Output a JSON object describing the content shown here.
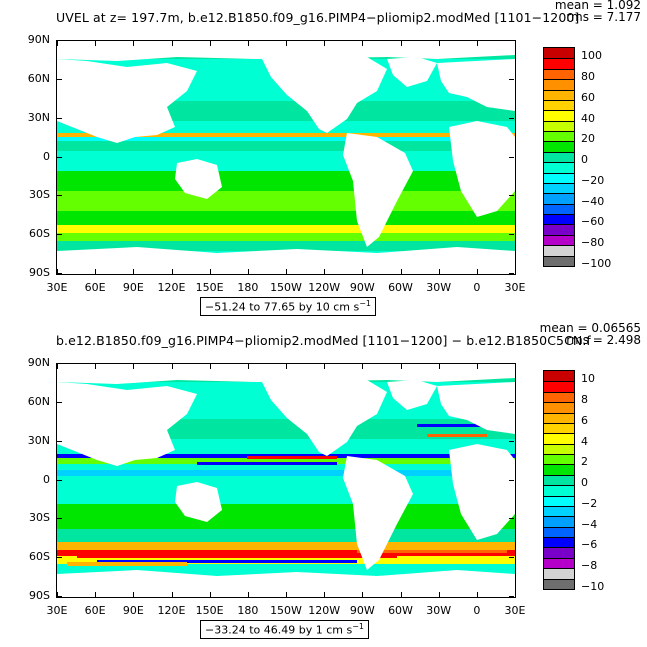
{
  "colors": [
    "#6e6e6e",
    "#d3d3d3",
    "#b400c8",
    "#7800c8",
    "#0000ff",
    "#0064ff",
    "#00a0ff",
    "#00d2ff",
    "#00ffff",
    "#00ffd2",
    "#00e6a0",
    "#00e600",
    "#64ff00",
    "#c8ff00",
    "#ffff00",
    "#ffd200",
    "#ffb400",
    "#ff9000",
    "#ff6400",
    "#ff0000",
    "#c80000"
  ],
  "land_color": "#ffffff",
  "panels": [
    {
      "id": "top",
      "title": "UVEL at z= 197.7m, b.e12.B1850.f09_g16.PIMP4−pliomip2.modMed [1101−1200]",
      "mean": "mean = 1.092",
      "rms": "rms = 7.177",
      "range": "−51.24 to 77.65 by 10 cm s",
      "units_sup": "−1",
      "labelbar": [
        "100",
        "80",
        "60",
        "40",
        "20",
        "0",
        "−20",
        "−40",
        "−60",
        "−80",
        "−100"
      ],
      "lat_labels": [
        "90N",
        "60N",
        "30N",
        "0",
        "30S",
        "60S",
        "90S"
      ],
      "lon_labels": [
        "30E",
        "60E",
        "90E",
        "120E",
        "150E",
        "180",
        "150W",
        "120W",
        "90W",
        "60W",
        "30W",
        "0",
        "30E"
      ]
    },
    {
      "id": "bottom",
      "title": "b.e12.B1850.f09_g16.PIMP4−pliomip2.modMed [1101−1200] − b.e12.B1850C5CN.f",
      "mean": "mean = 0.06565",
      "rms": "rms = 2.498",
      "range": "−33.24 to 46.49 by 1 cm s",
      "units_sup": "−1",
      "labelbar": [
        "10",
        "8",
        "6",
        "4",
        "2",
        "0",
        "−2",
        "−4",
        "−6",
        "−8",
        "−10"
      ],
      "lat_labels": [
        "90N",
        "60N",
        "30N",
        "0",
        "30S",
        "60S",
        "90S"
      ],
      "lon_labels": [
        "30E",
        "60E",
        "90E",
        "120E",
        "150E",
        "180",
        "150W",
        "120W",
        "90W",
        "60W",
        "30W",
        "0",
        "30E"
      ]
    }
  ]
}
